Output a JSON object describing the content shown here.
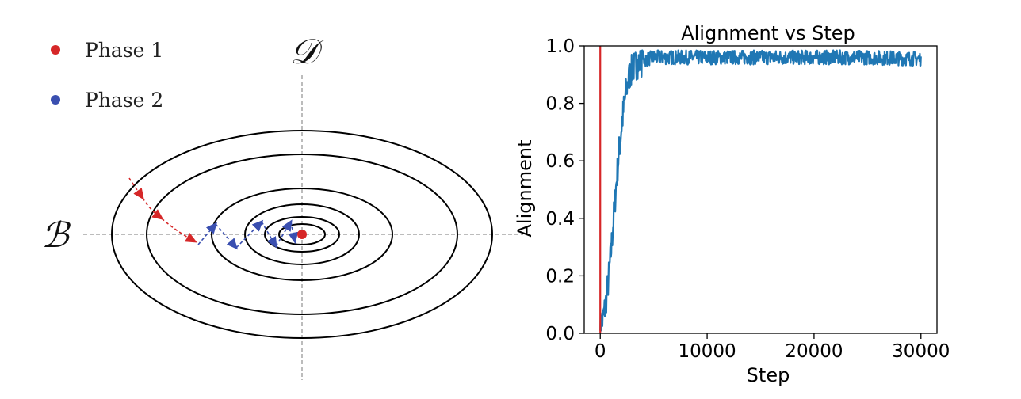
{
  "legend": {
    "phase1_label": "Phase 1",
    "phase2_label": "Phase 2",
    "phase1_color": "#d62728",
    "phase2_color": "#3a4fb0"
  },
  "diagram": {
    "axis_x_label": "ℬ",
    "axis_y_label": "𝒟",
    "contour_color": "#000000",
    "axis_line_color": "#7a7a7a"
  },
  "chart_data": {
    "type": "line",
    "title": "Alignment vs Step",
    "xlabel": "Step",
    "ylabel": "Alignment",
    "xlim": [
      -1500,
      31500
    ],
    "ylim": [
      0.0,
      1.0
    ],
    "xticks": [
      0,
      10000,
      20000,
      30000
    ],
    "yticks": [
      0.0,
      0.2,
      0.4,
      0.6,
      0.8,
      1.0
    ],
    "xtick_labels": [
      "0",
      "10000",
      "20000",
      "30000"
    ],
    "ytick_labels": [
      "0.0",
      "0.2",
      "0.4",
      "0.6",
      "0.8",
      "1.0"
    ],
    "grid": false,
    "series": [
      {
        "color": "#1f77b4",
        "x": [
          0,
          250,
          500,
          750,
          1000,
          1250,
          1500,
          1750,
          2000,
          2250,
          2500,
          2750,
          3000,
          3500,
          4000,
          4500,
          5000,
          6000,
          8000,
          10000,
          15000,
          20000,
          25000,
          30000
        ],
        "y": [
          0.02,
          0.05,
          0.1,
          0.18,
          0.28,
          0.4,
          0.52,
          0.63,
          0.72,
          0.8,
          0.86,
          0.9,
          0.92,
          0.94,
          0.95,
          0.955,
          0.96,
          0.96,
          0.96,
          0.96,
          0.96,
          0.96,
          0.96,
          0.955
        ],
        "noise": 0.025
      }
    ],
    "vline": {
      "x": 0,
      "color": "#d62728",
      "y_range": [
        0.0,
        1.0
      ]
    }
  }
}
